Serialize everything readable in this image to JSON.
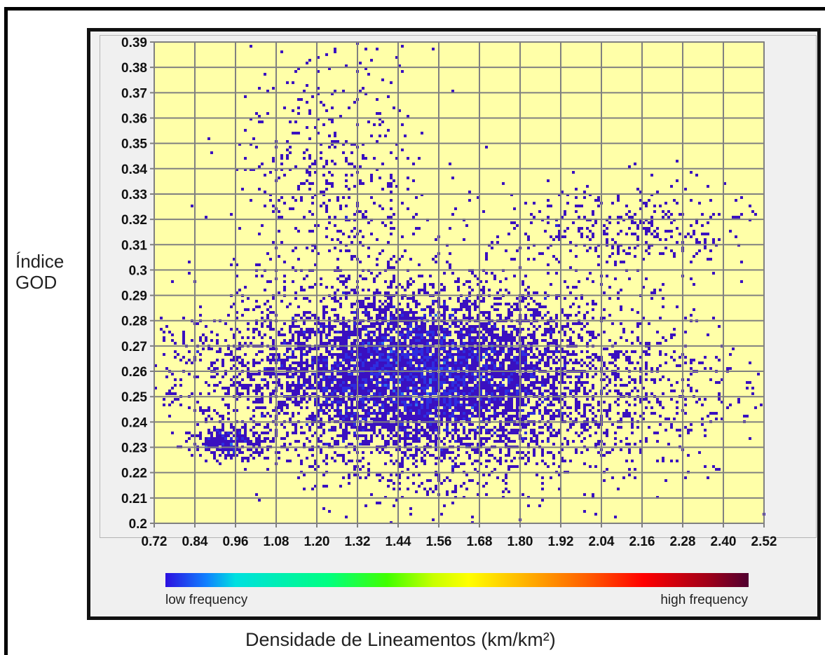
{
  "chart_data": {
    "type": "heatmap",
    "title": "",
    "xlabel": "Densidade de Lineamentos (km/km²)",
    "ylabel_lines": [
      "Índice",
      "GOD"
    ],
    "x_ticks": [
      "0.72",
      "0.84",
      "0.96",
      "1.08",
      "1.20",
      "1.32",
      "1.44",
      "1.56",
      "1.68",
      "1.80",
      "1.92",
      "2.04",
      "2.16",
      "2.28",
      "2.40",
      "2.52"
    ],
    "y_ticks": [
      "0.2",
      "0.21",
      "0.22",
      "0.23",
      "0.24",
      "0.25",
      "0.26",
      "0.27",
      "0.28",
      "0.29",
      "0.3",
      "0.31",
      "0.32",
      "0.33",
      "0.34",
      "0.35",
      "0.36",
      "0.37",
      "0.38",
      "0.39"
    ],
    "xlim": [
      0.72,
      2.52
    ],
    "ylim": [
      0.2,
      0.39
    ],
    "grid": true,
    "plot_background": "#ffffa8",
    "colorscale": [
      "#2b0fe0",
      "#00e0e0",
      "#40ff00",
      "#ffff00",
      "#ff6000",
      "#ff0000",
      "#500030"
    ],
    "legend": {
      "low": "low frequency",
      "high": "high frequency",
      "placement": "bottom"
    },
    "clusters": [
      {
        "x_center": 1.52,
        "y_center": 0.257,
        "x_spread": 0.22,
        "y_spread": 0.018,
        "weight": 0.55
      },
      {
        "x_center": 1.3,
        "y_center": 0.26,
        "x_spread": 0.3,
        "y_spread": 0.013,
        "weight": 0.2
      },
      {
        "x_center": 1.95,
        "y_center": 0.255,
        "x_spread": 0.25,
        "y_spread": 0.02,
        "weight": 0.12
      },
      {
        "x_center": 1.25,
        "y_center": 0.33,
        "x_spread": 0.15,
        "y_spread": 0.03,
        "weight": 0.06
      },
      {
        "x_center": 2.1,
        "y_center": 0.315,
        "x_spread": 0.2,
        "y_spread": 0.01,
        "weight": 0.04
      },
      {
        "x_center": 0.95,
        "y_center": 0.232,
        "x_spread": 0.06,
        "y_spread": 0.003,
        "weight": 0.03
      }
    ]
  }
}
